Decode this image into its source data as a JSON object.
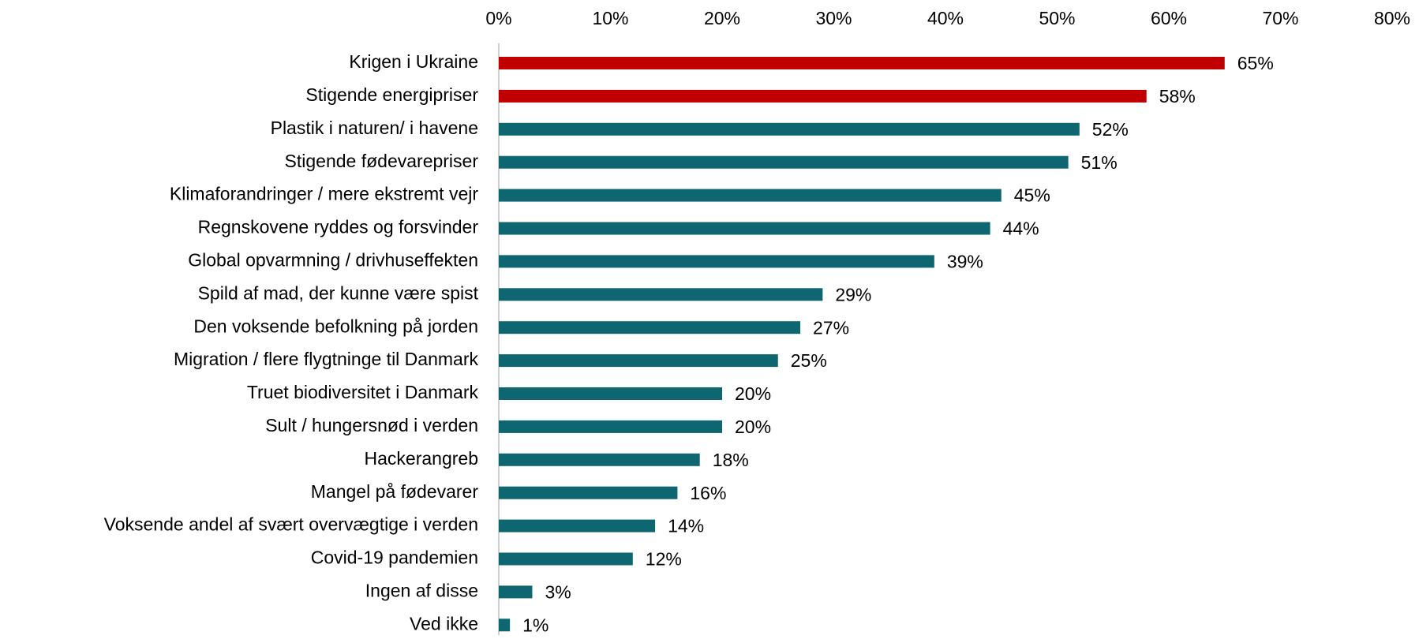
{
  "chart_data": {
    "type": "bar",
    "orientation": "horizontal",
    "categories": [
      "Krigen i Ukraine",
      "Stigende energipriser",
      "Plastik i naturen/ i havene",
      "Stigende fødevarepriser",
      "Klimaforandringer / mere ekstremt vejr",
      "Regnskovene ryddes og forsvinder",
      "Global opvarmning / drivhuseffekten",
      "Spild af mad, der kunne være spist",
      "Den voksende befolkning på jorden",
      "Migration / flere flygtninge til Danmark",
      "Truet biodiversitet i Danmark",
      "Sult / hungersnød i verden",
      "Hackerangreb",
      "Mangel på fødevarer",
      "Voksende andel af svært overvægtige i verden",
      "Covid-19 pandemien",
      "Ingen af disse",
      "Ved ikke"
    ],
    "values": [
      65,
      58,
      52,
      51,
      45,
      44,
      39,
      29,
      27,
      25,
      20,
      20,
      18,
      16,
      14,
      12,
      3,
      1
    ],
    "value_labels": [
      "65%",
      "58%",
      "52%",
      "51%",
      "45%",
      "44%",
      "39%",
      "29%",
      "27%",
      "25%",
      "20%",
      "20%",
      "18%",
      "16%",
      "14%",
      "12%",
      "3%",
      "1%"
    ],
    "colors": [
      "#c00000",
      "#c00000",
      "#0e6670",
      "#0e6670",
      "#0e6670",
      "#0e6670",
      "#0e6670",
      "#0e6670",
      "#0e6670",
      "#0e6670",
      "#0e6670",
      "#0e6670",
      "#0e6670",
      "#0e6670",
      "#0e6670",
      "#0e6670",
      "#0e6670",
      "#0e6670"
    ],
    "xlim": [
      0,
      80
    ],
    "xticks": [
      {
        "value": 0,
        "label": "0%"
      },
      {
        "value": 10,
        "label": "10%"
      },
      {
        "value": 20,
        "label": "20%"
      },
      {
        "value": 30,
        "label": "30%"
      },
      {
        "value": 40,
        "label": "40%"
      },
      {
        "value": 50,
        "label": "50%"
      },
      {
        "value": 60,
        "label": "60%"
      },
      {
        "value": 70,
        "label": "70%"
      },
      {
        "value": 80,
        "label": "80%"
      }
    ],
    "grid": false
  }
}
